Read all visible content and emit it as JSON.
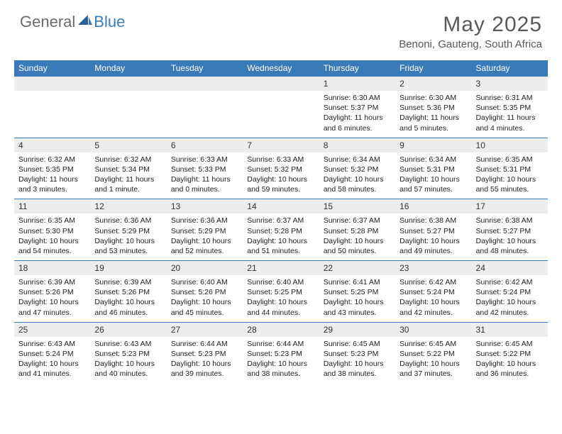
{
  "brand": {
    "part1": "General",
    "part2": "Blue",
    "accent_color": "#3a7ab8",
    "gray_color": "#6b6b6b"
  },
  "title": "May 2025",
  "location": "Benoni, Gauteng, South Africa",
  "day_headers": [
    "Sunday",
    "Monday",
    "Tuesday",
    "Wednesday",
    "Thursday",
    "Friday",
    "Saturday"
  ],
  "colors": {
    "header_bg": "#3a7ab8",
    "daynum_bg": "#ededed",
    "border": "#3a7ab8",
    "text": "#222222",
    "title_text": "#595959"
  },
  "weeks": [
    {
      "nums": [
        "",
        "",
        "",
        "",
        "1",
        "2",
        "3"
      ],
      "cells": [
        null,
        null,
        null,
        null,
        {
          "sunrise": "6:30 AM",
          "sunset": "5:37 PM",
          "daylight": "11 hours and 6 minutes."
        },
        {
          "sunrise": "6:30 AM",
          "sunset": "5:36 PM",
          "daylight": "11 hours and 5 minutes."
        },
        {
          "sunrise": "6:31 AM",
          "sunset": "5:35 PM",
          "daylight": "11 hours and 4 minutes."
        }
      ]
    },
    {
      "nums": [
        "4",
        "5",
        "6",
        "7",
        "8",
        "9",
        "10"
      ],
      "cells": [
        {
          "sunrise": "6:32 AM",
          "sunset": "5:35 PM",
          "daylight": "11 hours and 3 minutes."
        },
        {
          "sunrise": "6:32 AM",
          "sunset": "5:34 PM",
          "daylight": "11 hours and 1 minute."
        },
        {
          "sunrise": "6:33 AM",
          "sunset": "5:33 PM",
          "daylight": "11 hours and 0 minutes."
        },
        {
          "sunrise": "6:33 AM",
          "sunset": "5:32 PM",
          "daylight": "10 hours and 59 minutes."
        },
        {
          "sunrise": "6:34 AM",
          "sunset": "5:32 PM",
          "daylight": "10 hours and 58 minutes."
        },
        {
          "sunrise": "6:34 AM",
          "sunset": "5:31 PM",
          "daylight": "10 hours and 57 minutes."
        },
        {
          "sunrise": "6:35 AM",
          "sunset": "5:31 PM",
          "daylight": "10 hours and 55 minutes."
        }
      ]
    },
    {
      "nums": [
        "11",
        "12",
        "13",
        "14",
        "15",
        "16",
        "17"
      ],
      "cells": [
        {
          "sunrise": "6:35 AM",
          "sunset": "5:30 PM",
          "daylight": "10 hours and 54 minutes."
        },
        {
          "sunrise": "6:36 AM",
          "sunset": "5:29 PM",
          "daylight": "10 hours and 53 minutes."
        },
        {
          "sunrise": "6:36 AM",
          "sunset": "5:29 PM",
          "daylight": "10 hours and 52 minutes."
        },
        {
          "sunrise": "6:37 AM",
          "sunset": "5:28 PM",
          "daylight": "10 hours and 51 minutes."
        },
        {
          "sunrise": "6:37 AM",
          "sunset": "5:28 PM",
          "daylight": "10 hours and 50 minutes."
        },
        {
          "sunrise": "6:38 AM",
          "sunset": "5:27 PM",
          "daylight": "10 hours and 49 minutes."
        },
        {
          "sunrise": "6:38 AM",
          "sunset": "5:27 PM",
          "daylight": "10 hours and 48 minutes."
        }
      ]
    },
    {
      "nums": [
        "18",
        "19",
        "20",
        "21",
        "22",
        "23",
        "24"
      ],
      "cells": [
        {
          "sunrise": "6:39 AM",
          "sunset": "5:26 PM",
          "daylight": "10 hours and 47 minutes."
        },
        {
          "sunrise": "6:39 AM",
          "sunset": "5:26 PM",
          "daylight": "10 hours and 46 minutes."
        },
        {
          "sunrise": "6:40 AM",
          "sunset": "5:26 PM",
          "daylight": "10 hours and 45 minutes."
        },
        {
          "sunrise": "6:40 AM",
          "sunset": "5:25 PM",
          "daylight": "10 hours and 44 minutes."
        },
        {
          "sunrise": "6:41 AM",
          "sunset": "5:25 PM",
          "daylight": "10 hours and 43 minutes."
        },
        {
          "sunrise": "6:42 AM",
          "sunset": "5:24 PM",
          "daylight": "10 hours and 42 minutes."
        },
        {
          "sunrise": "6:42 AM",
          "sunset": "5:24 PM",
          "daylight": "10 hours and 42 minutes."
        }
      ]
    },
    {
      "nums": [
        "25",
        "26",
        "27",
        "28",
        "29",
        "30",
        "31"
      ],
      "cells": [
        {
          "sunrise": "6:43 AM",
          "sunset": "5:24 PM",
          "daylight": "10 hours and 41 minutes."
        },
        {
          "sunrise": "6:43 AM",
          "sunset": "5:23 PM",
          "daylight": "10 hours and 40 minutes."
        },
        {
          "sunrise": "6:44 AM",
          "sunset": "5:23 PM",
          "daylight": "10 hours and 39 minutes."
        },
        {
          "sunrise": "6:44 AM",
          "sunset": "5:23 PM",
          "daylight": "10 hours and 38 minutes."
        },
        {
          "sunrise": "6:45 AM",
          "sunset": "5:23 PM",
          "daylight": "10 hours and 38 minutes."
        },
        {
          "sunrise": "6:45 AM",
          "sunset": "5:22 PM",
          "daylight": "10 hours and 37 minutes."
        },
        {
          "sunrise": "6:45 AM",
          "sunset": "5:22 PM",
          "daylight": "10 hours and 36 minutes."
        }
      ]
    }
  ]
}
